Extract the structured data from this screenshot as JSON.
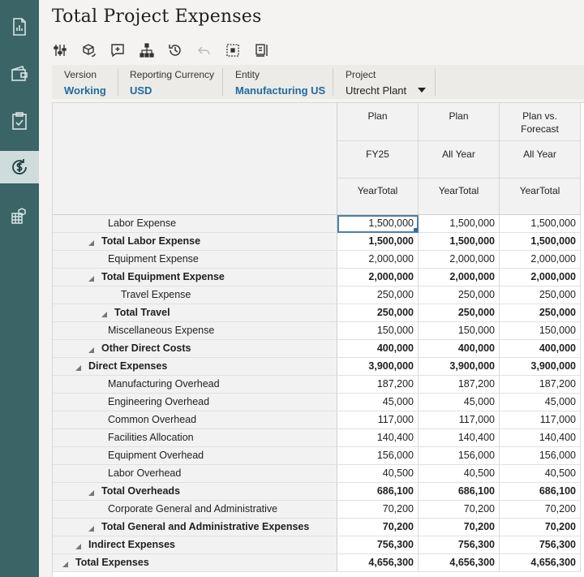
{
  "page": {
    "title": "Total Project Expenses"
  },
  "rail": [
    {
      "icon": "chart-document-icon",
      "active": false
    },
    {
      "icon": "wallet-icon",
      "active": false
    },
    {
      "icon": "clipboard-check-icon",
      "active": false
    },
    {
      "icon": "dollar-cycle-icon",
      "active": true
    },
    {
      "icon": "grid-cube-icon",
      "active": false
    }
  ],
  "toolbar": [
    {
      "icon": "sliders-icon"
    },
    {
      "icon": "cube-refresh-icon"
    },
    {
      "icon": "add-comment-icon"
    },
    {
      "icon": "hierarchy-icon"
    },
    {
      "icon": "history-icon"
    },
    {
      "icon": "undo-icon",
      "disabled": true
    },
    {
      "icon": "grid-select-icon"
    },
    {
      "icon": "panel-list-icon"
    }
  ],
  "pov": [
    {
      "label": "Version",
      "value": "Working"
    },
    {
      "label": "Reporting Currency",
      "value": "USD"
    },
    {
      "label": "Entity",
      "value": "Manufacturing US"
    },
    {
      "label": "Project",
      "value": "Utrecht Plant"
    }
  ],
  "columns": [
    {
      "h1": "Plan",
      "h2": "FY25",
      "h3": "YearTotal"
    },
    {
      "h1": "Plan",
      "h2": "All Year",
      "h3": "YearTotal"
    },
    {
      "h1": "Plan vs.\nForecast",
      "h2": "All Year",
      "h3": "YearTotal"
    }
  ],
  "rows": [
    {
      "label": "Labor Expense",
      "bold": false,
      "indent": 4,
      "caret": false,
      "values": [
        "1,500,000",
        "1,500,000",
        "1,500,000"
      ]
    },
    {
      "label": "Total Labor Expense",
      "bold": true,
      "indent": 3,
      "caret": true,
      "values": [
        "1,500,000",
        "1,500,000",
        "1,500,000"
      ]
    },
    {
      "label": "Equipment Expense",
      "bold": false,
      "indent": 4,
      "caret": false,
      "values": [
        "2,000,000",
        "2,000,000",
        "2,000,000"
      ]
    },
    {
      "label": "Total Equipment Expense",
      "bold": true,
      "indent": 3,
      "caret": true,
      "values": [
        "2,000,000",
        "2,000,000",
        "2,000,000"
      ]
    },
    {
      "label": "Travel Expense",
      "bold": false,
      "indent": 5,
      "caret": false,
      "values": [
        "250,000",
        "250,000",
        "250,000"
      ]
    },
    {
      "label": "Total Travel",
      "bold": true,
      "indent": 4,
      "caret": true,
      "values": [
        "250,000",
        "250,000",
        "250,000"
      ]
    },
    {
      "label": "Miscellaneous Expense",
      "bold": false,
      "indent": 4,
      "caret": false,
      "values": [
        "150,000",
        "150,000",
        "150,000"
      ]
    },
    {
      "label": "Other Direct Costs",
      "bold": true,
      "indent": 3,
      "caret": true,
      "values": [
        "400,000",
        "400,000",
        "400,000"
      ]
    },
    {
      "label": "Direct Expenses",
      "bold": true,
      "indent": 2,
      "caret": true,
      "values": [
        "3,900,000",
        "3,900,000",
        "3,900,000"
      ]
    },
    {
      "label": "Manufacturing Overhead",
      "bold": false,
      "indent": 4,
      "caret": false,
      "values": [
        "187,200",
        "187,200",
        "187,200"
      ]
    },
    {
      "label": "Engineering Overhead",
      "bold": false,
      "indent": 4,
      "caret": false,
      "values": [
        "45,000",
        "45,000",
        "45,000"
      ]
    },
    {
      "label": "Common Overhead",
      "bold": false,
      "indent": 4,
      "caret": false,
      "values": [
        "117,000",
        "117,000",
        "117,000"
      ]
    },
    {
      "label": "Facilities Allocation",
      "bold": false,
      "indent": 4,
      "caret": false,
      "values": [
        "140,400",
        "140,400",
        "140,400"
      ]
    },
    {
      "label": "Equipment Overhead",
      "bold": false,
      "indent": 4,
      "caret": false,
      "values": [
        "156,000",
        "156,000",
        "156,000"
      ]
    },
    {
      "label": "Labor Overhead",
      "bold": false,
      "indent": 4,
      "caret": false,
      "values": [
        "40,500",
        "40,500",
        "40,500"
      ]
    },
    {
      "label": "Total Overheads",
      "bold": true,
      "indent": 3,
      "caret": true,
      "values": [
        "686,100",
        "686,100",
        "686,100"
      ]
    },
    {
      "label": "Corporate General and Administrative",
      "bold": false,
      "indent": 4,
      "caret": false,
      "values": [
        "70,200",
        "70,200",
        "70,200"
      ]
    },
    {
      "label": "Total General and Administrative Expenses",
      "bold": true,
      "indent": 3,
      "caret": true,
      "values": [
        "70,200",
        "70,200",
        "70,200"
      ]
    },
    {
      "label": "Indirect Expenses",
      "bold": true,
      "indent": 2,
      "caret": true,
      "values": [
        "756,300",
        "756,300",
        "756,300"
      ]
    },
    {
      "label": "Total Expenses",
      "bold": true,
      "indent": 1,
      "caret": true,
      "values": [
        "4,656,300",
        "4,656,300",
        "4,656,300"
      ]
    }
  ],
  "selected_cell": {
    "row": 0,
    "col": 0
  }
}
